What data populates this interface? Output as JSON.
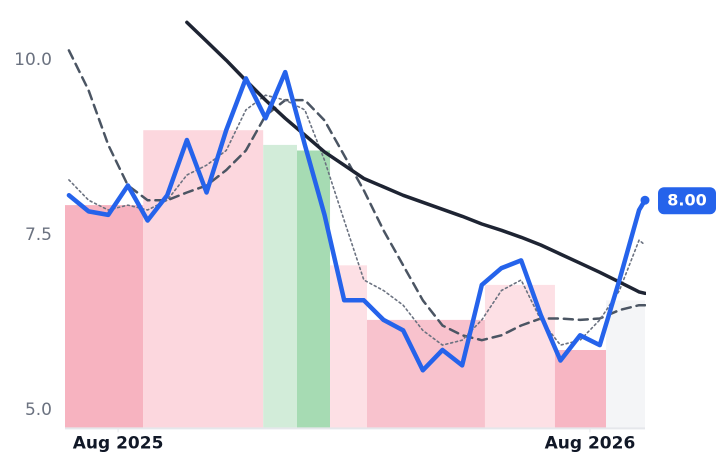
{
  "chart_data": {
    "type": "line",
    "x": [
      -1.25,
      -0.75,
      -0.25,
      0.25,
      0.75,
      1.25,
      1.75,
      2.25,
      2.75,
      3.25,
      3.75,
      4.25,
      4.75,
      5.25,
      5.75,
      6.25,
      6.75,
      7.25,
      7.75,
      8.25,
      8.75,
      9.25,
      9.75,
      10.25,
      10.75,
      11.25,
      11.75,
      12.25,
      12.75,
      13.25,
      13.4
    ],
    "xlim": [
      -1.35,
      13.4
    ],
    "xticks": [
      {
        "value": 0,
        "label": "Aug 2025"
      },
      {
        "value": 12,
        "label": "Aug 2026"
      }
    ],
    "ylim": [
      4.74,
      10.86
    ],
    "yticks": [
      {
        "value": 5,
        "label": "5.0"
      },
      {
        "value": 7.5,
        "label": "7.5"
      },
      {
        "value": 10,
        "label": "10.0"
      }
    ],
    "bands": [
      {
        "start": -1.35,
        "end": 0.64,
        "level": 7.93,
        "color": "#f7b3c0"
      },
      {
        "start": 0.64,
        "end": 3.69,
        "level": 9.0,
        "color": "#fcd7de"
      },
      {
        "start": 3.69,
        "end": 4.55,
        "level": 8.79,
        "color": "#d2ecd9"
      },
      {
        "start": 4.55,
        "end": 5.39,
        "level": 8.71,
        "color": "#a6dbb3"
      },
      {
        "start": 5.39,
        "end": 6.33,
        "level": 7.07,
        "color": "#fde0e5"
      },
      {
        "start": 6.33,
        "end": 9.33,
        "level": 6.29,
        "color": "#f8c2cd"
      },
      {
        "start": 9.33,
        "end": 11.11,
        "level": 6.79,
        "color": "#fde0e5"
      },
      {
        "start": 11.11,
        "end": 12.41,
        "level": 5.86,
        "color": "#f7b6c3"
      },
      {
        "start": 12.41,
        "end": 13.4,
        "level": 6.57,
        "color": "#f4f5f7"
      }
    ],
    "series": [
      {
        "color": "#4b5563",
        "style": "dashed",
        "values": [
          10.14,
          9.57,
          8.79,
          8.21,
          8.0,
          8.0,
          8.11,
          8.21,
          8.43,
          8.71,
          9.21,
          9.43,
          9.43,
          9.14,
          8.64,
          8.14,
          7.57,
          7.07,
          6.57,
          6.21,
          6.07,
          6.0,
          6.07,
          6.21,
          6.31,
          6.31,
          6.29,
          6.31,
          6.43,
          6.5,
          6.5
        ]
      },
      {
        "color": "#6b7280",
        "style": "dotted",
        "values": [
          8.29,
          8.0,
          7.86,
          7.93,
          7.86,
          8.0,
          8.36,
          8.5,
          8.71,
          9.29,
          9.5,
          9.43,
          9.29,
          8.57,
          7.71,
          6.86,
          6.71,
          6.5,
          6.14,
          5.93,
          6.0,
          6.29,
          6.71,
          6.86,
          6.29,
          5.93,
          6.0,
          6.29,
          6.71,
          7.43,
          7.36
        ]
      },
      {
        "color": "#1e2433",
        "style": "thick",
        "values": [
          null,
          null,
          null,
          null,
          null,
          null,
          10.54,
          10.27,
          10.0,
          9.71,
          9.43,
          9.17,
          8.93,
          8.69,
          8.5,
          8.31,
          8.19,
          8.07,
          7.97,
          7.87,
          7.77,
          7.66,
          7.57,
          7.47,
          7.36,
          7.23,
          7.1,
          6.97,
          6.83,
          6.69,
          6.67
        ]
      },
      {
        "color": "#2563eb",
        "style": "main",
        "values": [
          8.07,
          7.84,
          7.79,
          8.21,
          7.71,
          8.07,
          8.86,
          8.11,
          9.0,
          9.74,
          9.17,
          9.83,
          8.79,
          7.79,
          6.57,
          6.57,
          6.29,
          6.14,
          5.57,
          5.86,
          5.64,
          6.79,
          7.03,
          7.14,
          6.36,
          5.71,
          6.07,
          5.93,
          6.86,
          7.86,
          8.0
        ],
        "value_labels": [
          null,
          null,
          null,
          null,
          null,
          null,
          null,
          null,
          null,
          null,
          null,
          null,
          null,
          null,
          null,
          null,
          null,
          null,
          null,
          null,
          null,
          null,
          null,
          null,
          null,
          null,
          null,
          null,
          null,
          null,
          "8.00"
        ]
      }
    ]
  }
}
